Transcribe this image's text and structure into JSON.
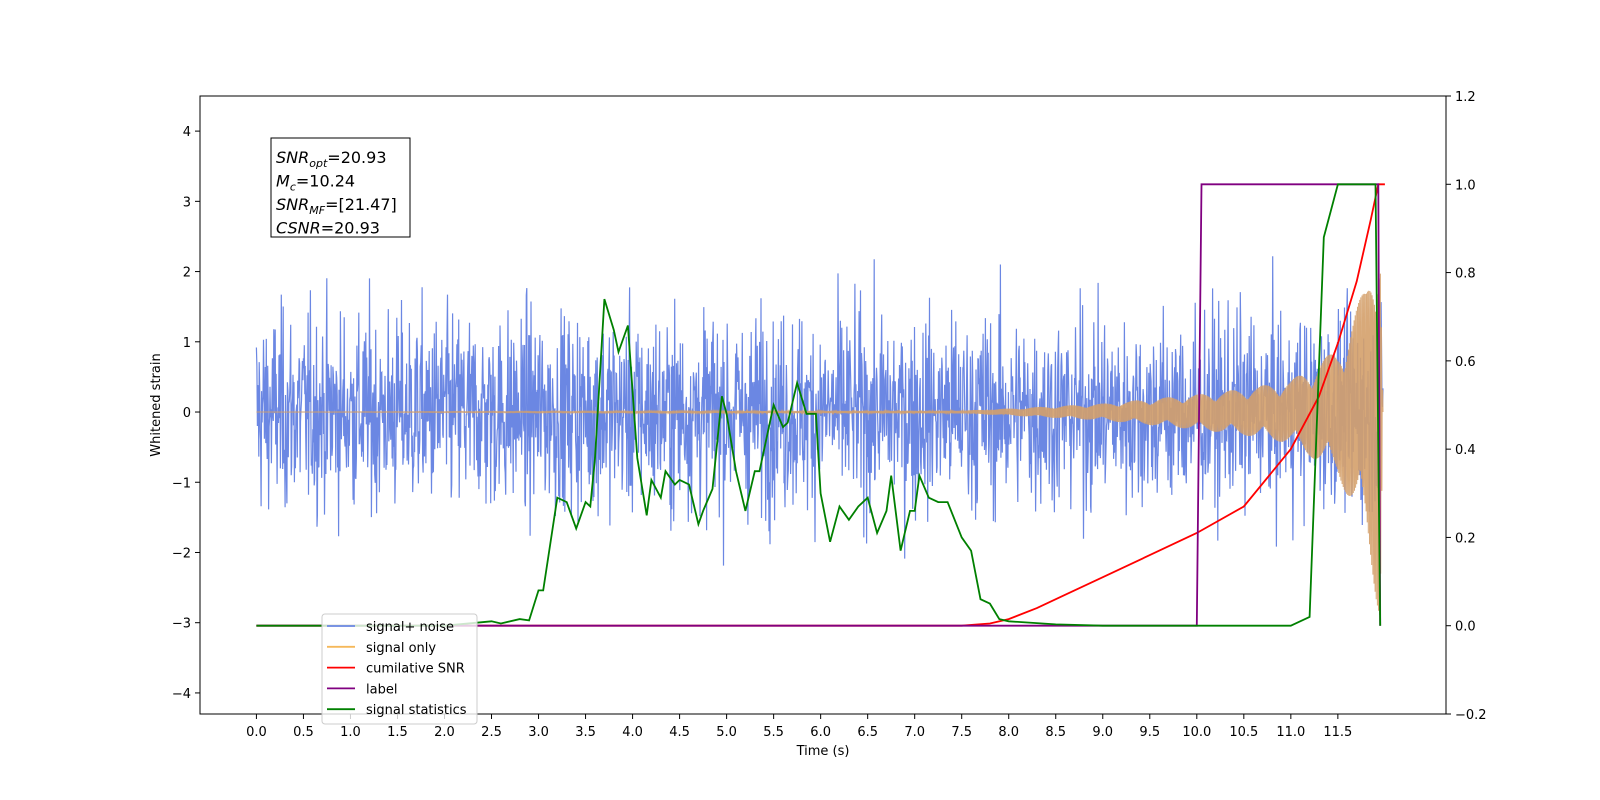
{
  "chart_data": {
    "type": "line",
    "xlabel": "Time (s)",
    "ylabel_left": "Whitened strain",
    "ylabel_right": "",
    "xlim": [
      -0.6,
      12.65
    ],
    "ylim_left": [
      -4.3,
      4.5
    ],
    "ylim_right": [
      -0.2,
      1.2
    ],
    "x_ticks": [
      0.0,
      0.5,
      1.0,
      1.5,
      2.0,
      2.5,
      3.0,
      3.5,
      4.0,
      4.5,
      5.0,
      5.5,
      6.0,
      6.5,
      7.0,
      7.5,
      8.0,
      8.5,
      9.0,
      9.5,
      10.0,
      10.5,
      11.0,
      11.5
    ],
    "x_tick_labels": [
      "0.0",
      "0.5",
      "1.0",
      "1.5",
      "2.0",
      "2.5",
      "3.0",
      "3.5",
      "4.0",
      "4.5",
      "5.0",
      "5.5",
      "6.0",
      "6.5",
      "7.0",
      "7.5",
      "8.0",
      "8.5",
      "9.0",
      "9.5",
      "10.0",
      "10.5",
      "11.0",
      "11.5"
    ],
    "y_left_ticks": [
      -4,
      -3,
      -2,
      -1,
      0,
      1,
      2,
      3,
      4
    ],
    "y_left_tick_labels": [
      "−4",
      "−3",
      "−2",
      "−1",
      "0",
      "1",
      "2",
      "3",
      "4"
    ],
    "y_right_ticks": [
      -0.2,
      0.0,
      0.2,
      0.4,
      0.6,
      0.8,
      1.0,
      1.2
    ],
    "y_right_tick_labels": [
      "−0.2",
      "0.0",
      "0.2",
      "0.4",
      "0.6",
      "0.8",
      "1.0",
      "1.2"
    ],
    "annotation": [
      {
        "name": "SNR",
        "sub": "opt",
        "value": "=20.93"
      },
      {
        "name": "M",
        "sub": "c",
        "value": "=10.24"
      },
      {
        "name": "SNR",
        "sub": "MF",
        "value": "=[21.47]"
      },
      {
        "name": "CSNR",
        "sub": "",
        "value": "=20.93"
      }
    ],
    "legend": {
      "placement": "lower-left",
      "entries": [
        {
          "label": "signal+ noise",
          "color": "#6b87e3"
        },
        {
          "label": "signal only",
          "color": "#f5b85a"
        },
        {
          "label": "cumilative SNR",
          "color": "#ff0000"
        },
        {
          "label": "label",
          "color": "#800080"
        },
        {
          "label": "signal statistics",
          "color": "#008000"
        }
      ]
    },
    "series": [
      {
        "name": "signal+ noise",
        "axis": "left",
        "color": "#6b87e3",
        "kind": "noise",
        "x_start": 0.0,
        "x_end": 11.98,
        "std": 1.15
      },
      {
        "name": "signal only",
        "axis": "left",
        "color": "#d4a06a",
        "kind": "chirp",
        "x_start": 0.0,
        "x_end": 11.98,
        "envelope": [
          [
            0.0,
            0.0
          ],
          [
            7.5,
            0.02
          ],
          [
            8.0,
            0.05
          ],
          [
            9.0,
            0.12
          ],
          [
            10.0,
            0.25
          ],
          [
            10.5,
            0.33
          ],
          [
            11.0,
            0.45
          ],
          [
            11.5,
            0.9
          ],
          [
            11.8,
            1.8
          ],
          [
            11.9,
            2.6
          ],
          [
            11.95,
            3.0
          ],
          [
            11.98,
            0.0
          ]
        ]
      },
      {
        "name": "cumilative SNR",
        "axis": "right",
        "color": "#ff0000",
        "points": [
          [
            0.0,
            0.0
          ],
          [
            7.5,
            0.0
          ],
          [
            7.8,
            0.005
          ],
          [
            8.0,
            0.015
          ],
          [
            8.3,
            0.04
          ],
          [
            8.6,
            0.07
          ],
          [
            9.0,
            0.11
          ],
          [
            9.5,
            0.16
          ],
          [
            10.0,
            0.21
          ],
          [
            10.5,
            0.27
          ],
          [
            11.0,
            0.4
          ],
          [
            11.3,
            0.52
          ],
          [
            11.5,
            0.64
          ],
          [
            11.7,
            0.78
          ],
          [
            11.85,
            0.92
          ],
          [
            11.93,
            1.0
          ],
          [
            12.0,
            1.0
          ]
        ]
      },
      {
        "name": "label",
        "axis": "right",
        "color": "#800080",
        "points": [
          [
            0.0,
            0.0
          ],
          [
            10.0,
            0.0
          ],
          [
            10.05,
            1.0
          ],
          [
            11.93,
            1.0
          ],
          [
            11.95,
            0.0
          ]
        ]
      },
      {
        "name": "signal statistics",
        "axis": "right",
        "color": "#008000",
        "points": [
          [
            0.0,
            0.0
          ],
          [
            2.0,
            0.0
          ],
          [
            2.5,
            0.01
          ],
          [
            2.6,
            0.005
          ],
          [
            2.8,
            0.015
          ],
          [
            2.9,
            0.012
          ],
          [
            3.0,
            0.08
          ],
          [
            3.05,
            0.08
          ],
          [
            3.2,
            0.29
          ],
          [
            3.3,
            0.28
          ],
          [
            3.4,
            0.22
          ],
          [
            3.5,
            0.28
          ],
          [
            3.55,
            0.27
          ],
          [
            3.6,
            0.38
          ],
          [
            3.7,
            0.74
          ],
          [
            3.8,
            0.67
          ],
          [
            3.85,
            0.62
          ],
          [
            3.95,
            0.68
          ],
          [
            4.05,
            0.38
          ],
          [
            4.15,
            0.25
          ],
          [
            4.2,
            0.33
          ],
          [
            4.3,
            0.29
          ],
          [
            4.35,
            0.35
          ],
          [
            4.45,
            0.32
          ],
          [
            4.5,
            0.33
          ],
          [
            4.6,
            0.32
          ],
          [
            4.7,
            0.23
          ],
          [
            4.75,
            0.26
          ],
          [
            4.85,
            0.31
          ],
          [
            4.95,
            0.52
          ],
          [
            5.0,
            0.48
          ],
          [
            5.1,
            0.35
          ],
          [
            5.2,
            0.26
          ],
          [
            5.3,
            0.35
          ],
          [
            5.35,
            0.35
          ],
          [
            5.45,
            0.45
          ],
          [
            5.5,
            0.5
          ],
          [
            5.6,
            0.45
          ],
          [
            5.65,
            0.46
          ],
          [
            5.75,
            0.55
          ],
          [
            5.85,
            0.48
          ],
          [
            5.95,
            0.48
          ],
          [
            6.0,
            0.3
          ],
          [
            6.1,
            0.19
          ],
          [
            6.2,
            0.27
          ],
          [
            6.3,
            0.24
          ],
          [
            6.4,
            0.27
          ],
          [
            6.5,
            0.29
          ],
          [
            6.6,
            0.21
          ],
          [
            6.7,
            0.26
          ],
          [
            6.75,
            0.34
          ],
          [
            6.85,
            0.17
          ],
          [
            6.95,
            0.26
          ],
          [
            7.0,
            0.26
          ],
          [
            7.05,
            0.34
          ],
          [
            7.15,
            0.29
          ],
          [
            7.25,
            0.28
          ],
          [
            7.35,
            0.28
          ],
          [
            7.5,
            0.2
          ],
          [
            7.6,
            0.17
          ],
          [
            7.7,
            0.06
          ],
          [
            7.8,
            0.05
          ],
          [
            7.9,
            0.015
          ],
          [
            8.0,
            0.01
          ],
          [
            8.5,
            0.003
          ],
          [
            9.0,
            0.0
          ],
          [
            10.0,
            0.0
          ],
          [
            11.0,
            0.0
          ],
          [
            11.2,
            0.02
          ],
          [
            11.35,
            0.88
          ],
          [
            11.5,
            1.0
          ],
          [
            11.9,
            1.0
          ],
          [
            11.95,
            0.0
          ]
        ]
      }
    ]
  }
}
